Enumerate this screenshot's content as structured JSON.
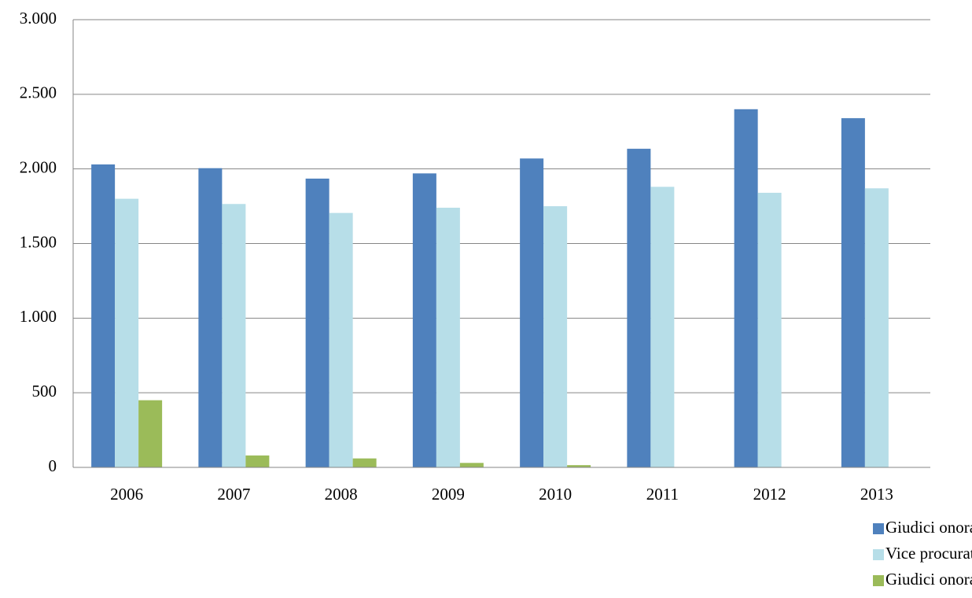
{
  "chart_data": {
    "type": "bar",
    "categories": [
      "2006",
      "2007",
      "2008",
      "2009",
      "2010",
      "2011",
      "2012",
      "2013"
    ],
    "series": [
      {
        "name": "Giudici onorari di tribunale",
        "color": "#4f81bd",
        "values": [
          2030,
          2005,
          1935,
          1970,
          2070,
          2135,
          2400,
          2340
        ]
      },
      {
        "name": "Vice procuratori onorari",
        "color": "#b7dee8",
        "values": [
          1800,
          1765,
          1705,
          1740,
          1750,
          1880,
          1840,
          1870
        ]
      },
      {
        "name": "Giudici onorari aggregati",
        "color": "#9bbb59",
        "values": [
          450,
          80,
          60,
          30,
          15,
          0,
          0,
          0
        ]
      }
    ],
    "ylim": [
      0,
      3000
    ],
    "yticks": [
      0,
      500,
      {
        "value": 1000,
        "label": "1.000"
      },
      {
        "value": 1500,
        "label": "1.500"
      },
      {
        "value": 2000,
        "label": "2.000"
      },
      {
        "value": 2500,
        "label": "2.500"
      },
      {
        "value": 3000,
        "label": "3.000"
      }
    ],
    "grid": true,
    "legend": "bottom-right"
  }
}
